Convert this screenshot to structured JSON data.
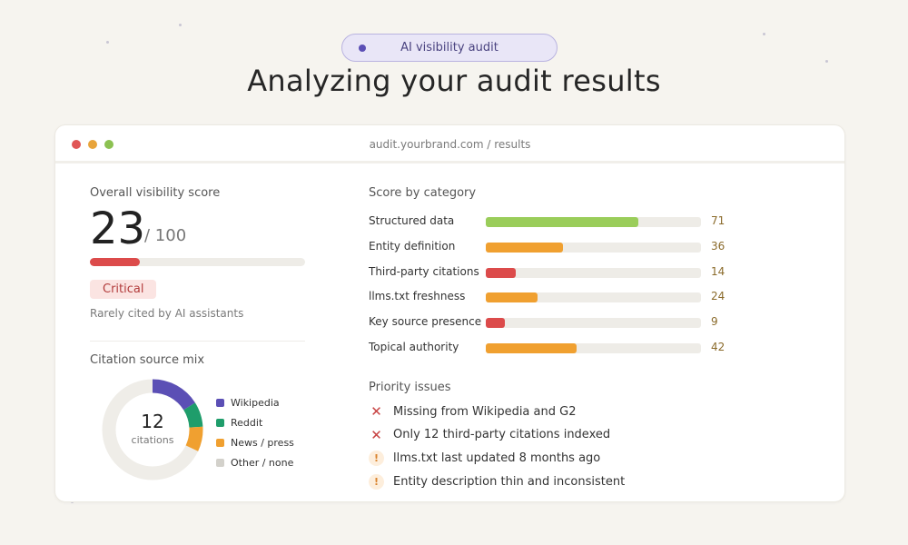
{
  "header": {
    "pill_label": "AI visibility audit",
    "headline": "Analyzing your audit results"
  },
  "window": {
    "url": "audit.yourbrand.com / results",
    "traffic_lights": [
      "#e05555",
      "#e8a43a",
      "#8cc152"
    ]
  },
  "overall": {
    "label": "Overall visibility score",
    "score": "23",
    "max": "/ 100",
    "progress": 0.23,
    "bar_color": "#dc4b4b",
    "badge": "Critical",
    "description": "Rarely cited by AI assistants"
  },
  "citations": {
    "label": "Citation source mix",
    "count": "12",
    "count_caption": "citations",
    "track_color": "#efede8",
    "segments": [
      {
        "name": "Wikipedia",
        "value": 0.16,
        "color": "#5b4fb5"
      },
      {
        "name": "Reddit",
        "value": 0.08,
        "color": "#1f9d6b"
      },
      {
        "name": "News / press",
        "value": 0.08,
        "color": "#f0a030"
      },
      {
        "name": "Other / none",
        "value": 0.68,
        "color": "#d3d1cb"
      }
    ]
  },
  "categories": {
    "label": "Score by category",
    "items": [
      {
        "name": "Structured data",
        "value": 71,
        "display": "71",
        "color": "#9acd5a"
      },
      {
        "name": "Entity definition",
        "value": 36,
        "display": "36",
        "color": "#f0a030"
      },
      {
        "name": "Third-party citations",
        "value": 14,
        "display": "14",
        "color": "#dc4b4b"
      },
      {
        "name": "llms.txt freshness",
        "value": 24,
        "display": "24",
        "color": "#f0a030"
      },
      {
        "name": "Key source presence",
        "value": 9,
        "display": "9",
        "color": "#dc4b4b"
      },
      {
        "name": "Topical authority",
        "value": 42,
        "display": "42",
        "color": "#f0a030"
      }
    ]
  },
  "issues": {
    "label": "Priority issues",
    "items": [
      {
        "text": "Missing from Wikipedia and G2",
        "icon": "x-icon",
        "glyph": "✕"
      },
      {
        "text": "Only 12 third-party citations indexed",
        "icon": "x-icon",
        "glyph": "✕"
      },
      {
        "text": "llms.txt last updated 8 months ago",
        "icon": "warning-icon",
        "glyph": "!"
      },
      {
        "text": "Entity description thin and inconsistent",
        "icon": "warning-icon",
        "glyph": "!"
      }
    ]
  }
}
